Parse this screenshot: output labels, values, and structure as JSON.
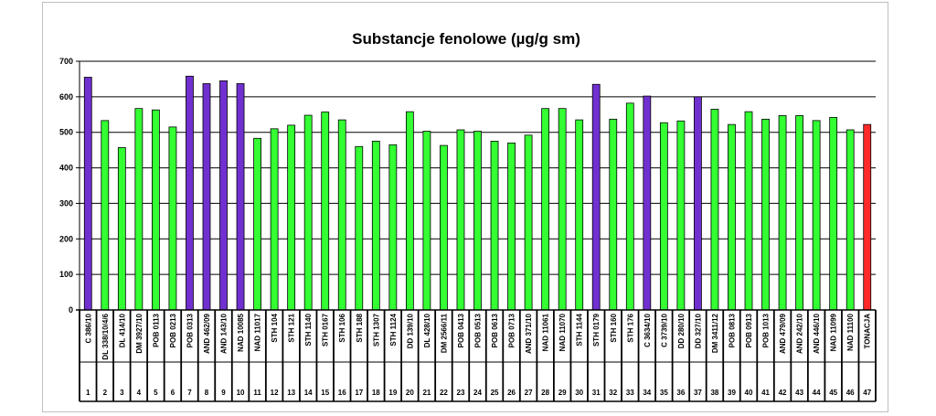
{
  "chart_data": {
    "type": "bar",
    "title": "Substancje fenolowe (µg/g sm)",
    "xlabel": "",
    "ylabel": "",
    "ylim": [
      0,
      700
    ],
    "yticks": [
      0,
      100,
      200,
      300,
      400,
      500,
      600,
      700
    ],
    "grid": "horizontal",
    "legend": "none",
    "colors": {
      "standard": "#33ff33",
      "highlight": "#7030d0",
      "control": "#ff2a2a"
    },
    "categories": [
      "C 386/10",
      "DL 338/10/4/6",
      "DL 414/10",
      "DM 3927/10",
      "POB 0113",
      "POB 0213",
      "POB 0313",
      "AND 462/09",
      "AND 143/10",
      "NAD 10085",
      "NAD 11017",
      "STH 104",
      "STH 121",
      "STH 1140",
      "STH 0167",
      "STH 106",
      "STH 188",
      "STH 1307",
      "STH 1124",
      "DD 139/10",
      "DL 428/10",
      "DM 2566/11",
      "POB 0413",
      "POB 0513",
      "POB 0613",
      "POB 0713",
      "AND 371/10",
      "NAD 11061",
      "NAD 11070",
      "STH 1144",
      "STH 0179",
      "STH 160",
      "STH 176",
      "C 3634/10",
      "C 3739/10",
      "DD 280/10",
      "DD 327/10",
      "DM 3411/12",
      "POB 0813",
      "POB 0913",
      "POB 1013",
      "AND 479/09",
      "AND 242/10",
      "AND 446/10",
      "NAD 11099",
      "NAD 11100",
      "TONACJA"
    ],
    "numbers": [
      "1",
      "2",
      "3",
      "4",
      "5",
      "6",
      "7",
      "8",
      "9",
      "10",
      "11",
      "12",
      "13",
      "14",
      "15",
      "16",
      "17",
      "18",
      "19",
      "20",
      "21",
      "22",
      "23",
      "24",
      "25",
      "26",
      "27",
      "28",
      "29",
      "30",
      "31",
      "32",
      "33",
      "34",
      "35",
      "36",
      "37",
      "38",
      "39",
      "40",
      "41",
      "42",
      "43",
      "44",
      "45",
      "46",
      "47"
    ],
    "values": [
      655,
      533,
      457,
      567,
      563,
      515,
      658,
      637,
      645,
      637,
      483,
      510,
      520,
      548,
      557,
      535,
      460,
      475,
      465,
      558,
      503,
      463,
      507,
      503,
      475,
      470,
      492,
      567,
      567,
      535,
      635,
      537,
      582,
      602,
      527,
      532,
      600,
      565,
      522,
      558,
      537,
      547,
      547,
      533,
      542,
      507,
      522
    ],
    "bar_groups": [
      "highlight",
      "standard",
      "standard",
      "standard",
      "standard",
      "standard",
      "highlight",
      "highlight",
      "highlight",
      "highlight",
      "standard",
      "standard",
      "standard",
      "standard",
      "standard",
      "standard",
      "standard",
      "standard",
      "standard",
      "standard",
      "standard",
      "standard",
      "standard",
      "standard",
      "standard",
      "standard",
      "standard",
      "standard",
      "standard",
      "standard",
      "highlight",
      "standard",
      "standard",
      "highlight",
      "standard",
      "standard",
      "highlight",
      "standard",
      "standard",
      "standard",
      "standard",
      "standard",
      "standard",
      "standard",
      "standard",
      "standard",
      "control"
    ]
  }
}
